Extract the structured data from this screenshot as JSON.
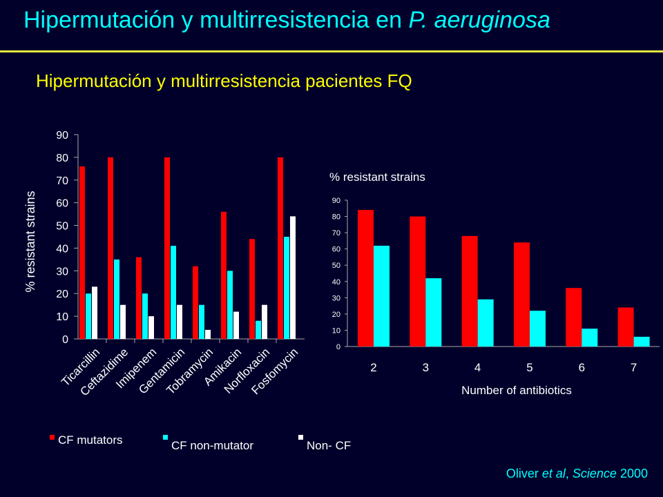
{
  "slide": {
    "title_main": "Hipermutación y multirresistencia en ",
    "title_italic": "P. aeruginosa",
    "subtitle": "Hipermutación y multirresistencia pacientes FQ",
    "citation_author": "Oliver ",
    "citation_italic": "et al",
    "citation_journal": ", ",
    "citation_journal_italic": "Science",
    "citation_year": " 2000"
  },
  "colors": {
    "background": "#00002a",
    "title": "#00ffff",
    "subtitle": "#ffff00",
    "rule": "#e8e840",
    "cf_mutators": "#ff0000",
    "cf_non_mutator": "#00ffff",
    "non_cf": "#ffffff",
    "axis_text": "#ffffff"
  },
  "chart_data": [
    {
      "type": "bar",
      "ylabel": "%  resistant strains",
      "ylim": [
        0,
        90
      ],
      "yticks": [
        0,
        10,
        20,
        30,
        40,
        50,
        60,
        70,
        80,
        90
      ],
      "categories": [
        "Ticarcillin",
        "Ceftazidime",
        "Imipenem",
        "Gentamicin",
        "Tobramycin",
        "Amikacin",
        "Norfloxacin",
        "Fosfomycin"
      ],
      "series": [
        {
          "name": "CF mutators",
          "color": "#ff0000",
          "values": [
            76,
            80,
            36,
            80,
            32,
            56,
            44,
            80
          ]
        },
        {
          "name": "CF non-mutator",
          "color": "#00ffff",
          "values": [
            20,
            35,
            20,
            41,
            15,
            30,
            8,
            45
          ]
        },
        {
          "name": "Non- CF",
          "color": "#ffffff",
          "values": [
            23,
            15,
            10,
            15,
            4,
            12,
            15,
            54
          ]
        }
      ],
      "legend": "bottom"
    },
    {
      "type": "bar",
      "title": "% resistant strains",
      "xlabel": "Number of antibiotics",
      "ylim": [
        0,
        90
      ],
      "yticks": [
        0,
        10,
        20,
        30,
        40,
        50,
        60,
        70,
        80,
        90
      ],
      "categories": [
        "2",
        "3",
        "4",
        "5",
        "6",
        "7"
      ],
      "series": [
        {
          "color": "#ff0000",
          "values": [
            84,
            80,
            68,
            64,
            36,
            24
          ]
        },
        {
          "color": "#00ffff",
          "values": [
            62,
            42,
            29,
            22,
            11,
            6
          ]
        }
      ]
    }
  ]
}
